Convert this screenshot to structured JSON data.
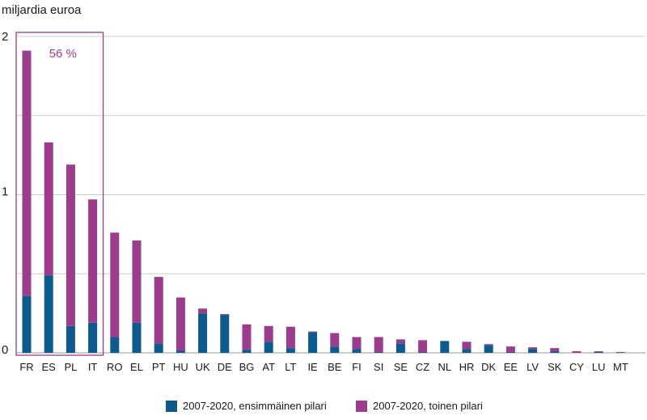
{
  "chart_data": {
    "type": "bar",
    "stacked": true,
    "ylabel": "miljardia euroa",
    "ylim": [
      0,
      2
    ],
    "yticks": [
      "0",
      "1",
      "2"
    ],
    "grid": true,
    "categories": [
      "FR",
      "ES",
      "PL",
      "IT",
      "RO",
      "EL",
      "PT",
      "HU",
      "UK",
      "DE",
      "BG",
      "AT",
      "LT",
      "IE",
      "BE",
      "FI",
      "SI",
      "SE",
      "CZ",
      "NL",
      "HR",
      "DK",
      "EE",
      "LV",
      "SK",
      "CY",
      "LU",
      "MT"
    ],
    "series": [
      {
        "name": "2007-2020, ensimmäinen pilari",
        "color": "#0f5a8c",
        "values": [
          0.36,
          0.49,
          0.17,
          0.19,
          0.1,
          0.19,
          0.06,
          0.015,
          0.25,
          0.24,
          0.02,
          0.07,
          0.03,
          0.13,
          0.04,
          0.025,
          0.005,
          0.06,
          0.005,
          0.075,
          0.025,
          0.05,
          0.005,
          0.025,
          0.01,
          0.0,
          0.005,
          0.0
        ]
      },
      {
        "name": "2007-2020, toinen pilari",
        "color": "#9b3c8c",
        "values": [
          1.55,
          0.84,
          1.02,
          0.78,
          0.66,
          0.52,
          0.42,
          0.335,
          0.03,
          0.005,
          0.16,
          0.1,
          0.135,
          0.005,
          0.085,
          0.075,
          0.095,
          0.025,
          0.075,
          0.0,
          0.045,
          0.005,
          0.035,
          0.01,
          0.02,
          0.01,
          0.005,
          0.005
        ]
      }
    ],
    "annotation": {
      "text": "56 %",
      "categories": [
        "FR",
        "ES",
        "PL",
        "IT"
      ],
      "color": "#9b3c8c"
    },
    "legend_position": "bottom"
  }
}
